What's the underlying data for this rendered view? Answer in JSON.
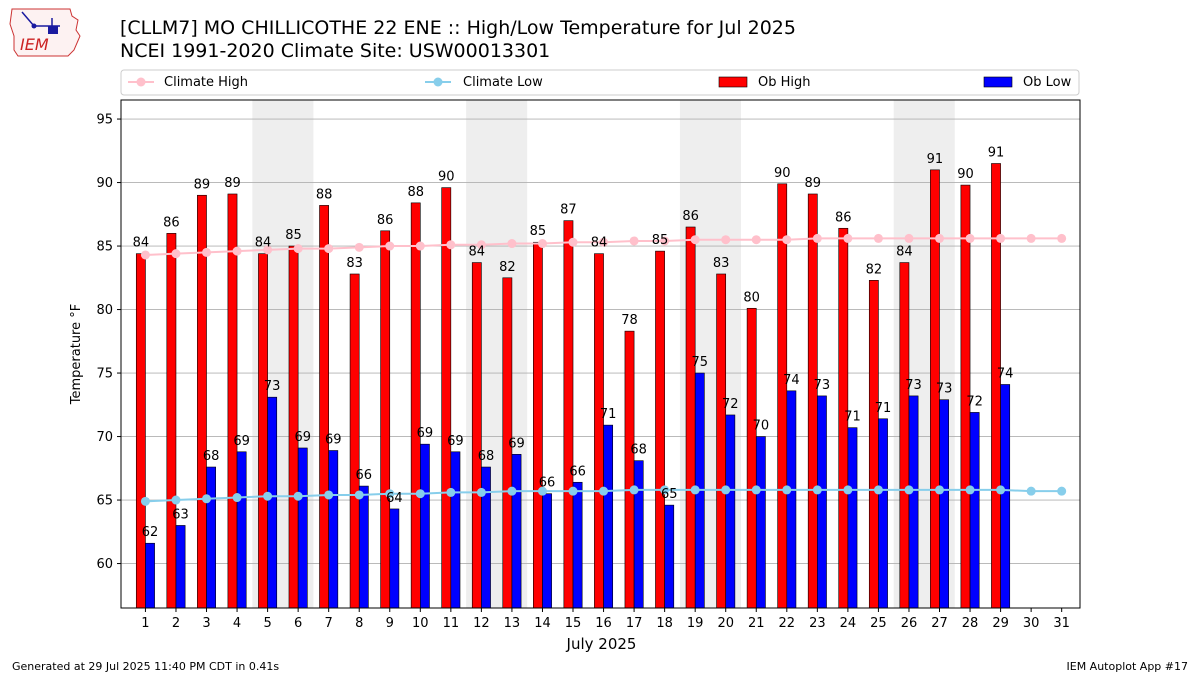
{
  "header": {
    "title_line1": "[CLLM7] MO CHILLICOTHE 22 ENE :: High/Low Temperature for Jul 2025",
    "title_line2": "NCEI 1991-2020 Climate Site: USW00013301",
    "logo_text": "IEM"
  },
  "footer": {
    "generated": "Generated at 29 Jul 2025 11:40 PM CDT in 0.41s",
    "app": "IEM Autoplot App #17"
  },
  "colors": {
    "ob_high": "#ff0000",
    "ob_low": "#0000ff",
    "climate_high": "#ffc0cb",
    "climate_low": "#87ceeb",
    "weekend_shade": "#eeeeee",
    "grid": "#b0b0b0"
  },
  "chart_data": {
    "type": "bar",
    "xlabel": "July 2025",
    "ylabel": "Temperature °F",
    "ylim": [
      56.5,
      96.5
    ],
    "yticks": [
      60,
      65,
      70,
      75,
      80,
      85,
      90,
      95
    ],
    "grid": "horizontal",
    "legend": "top",
    "categories": [
      "1",
      "2",
      "3",
      "4",
      "5",
      "6",
      "7",
      "8",
      "9",
      "10",
      "11",
      "12",
      "13",
      "14",
      "15",
      "16",
      "17",
      "18",
      "19",
      "20",
      "21",
      "22",
      "23",
      "24",
      "25",
      "26",
      "27",
      "28",
      "29",
      "30",
      "31"
    ],
    "weekend_bands": [
      [
        5,
        6
      ],
      [
        12,
        13
      ],
      [
        19,
        20
      ],
      [
        26,
        27
      ]
    ],
    "series": [
      {
        "name": "Climate High",
        "kind": "line",
        "values": [
          84.3,
          84.4,
          84.5,
          84.6,
          84.7,
          84.8,
          84.8,
          84.9,
          85.0,
          85.0,
          85.1,
          85.1,
          85.2,
          85.2,
          85.3,
          85.3,
          85.4,
          85.4,
          85.5,
          85.5,
          85.5,
          85.5,
          85.6,
          85.6,
          85.6,
          85.6,
          85.6,
          85.6,
          85.6,
          85.6,
          85.6
        ]
      },
      {
        "name": "Climate Low",
        "kind": "line",
        "values": [
          64.9,
          65.0,
          65.1,
          65.2,
          65.3,
          65.3,
          65.4,
          65.4,
          65.5,
          65.5,
          65.6,
          65.6,
          65.7,
          65.7,
          65.7,
          65.7,
          65.8,
          65.8,
          65.8,
          65.8,
          65.8,
          65.8,
          65.8,
          65.8,
          65.8,
          65.8,
          65.8,
          65.8,
          65.8,
          65.7,
          65.7
        ]
      },
      {
        "name": "Ob High",
        "kind": "bar",
        "values": [
          84.4,
          86.0,
          89.0,
          89.1,
          84.4,
          85.0,
          88.2,
          82.8,
          86.2,
          88.4,
          89.6,
          83.7,
          82.5,
          85.3,
          87.0,
          84.4,
          78.3,
          84.6,
          86.5,
          82.8,
          80.1,
          89.9,
          89.1,
          86.4,
          82.3,
          83.7,
          91.0,
          89.8,
          91.5,
          null,
          null
        ],
        "labels": [
          "84",
          "86",
          "89",
          "89",
          "84",
          "85",
          "88",
          "83",
          "86",
          "88",
          "90",
          "84",
          "82",
          "85",
          "87",
          "84",
          "78",
          "85",
          "86",
          "83",
          "80",
          "90",
          "89",
          "86",
          "82",
          "84",
          "91",
          "90",
          "91",
          "",
          ""
        ]
      },
      {
        "name": "Ob Low",
        "kind": "bar",
        "values": [
          61.6,
          63.0,
          67.6,
          68.8,
          73.1,
          69.1,
          68.9,
          66.1,
          64.3,
          69.4,
          68.8,
          67.6,
          68.6,
          65.5,
          66.4,
          70.9,
          68.1,
          64.6,
          75.0,
          71.7,
          70.0,
          73.6,
          73.2,
          70.7,
          71.4,
          73.2,
          72.9,
          71.9,
          74.1,
          null,
          null
        ],
        "labels": [
          "62",
          "63",
          "68",
          "69",
          "73",
          "69",
          "69",
          "66",
          "64",
          "69",
          "69",
          "68",
          "69",
          "66",
          "66",
          "71",
          "68",
          "65",
          "75",
          "72",
          "70",
          "74",
          "73",
          "71",
          "71",
          "73",
          "73",
          "72",
          "74",
          "",
          ""
        ]
      }
    ]
  }
}
